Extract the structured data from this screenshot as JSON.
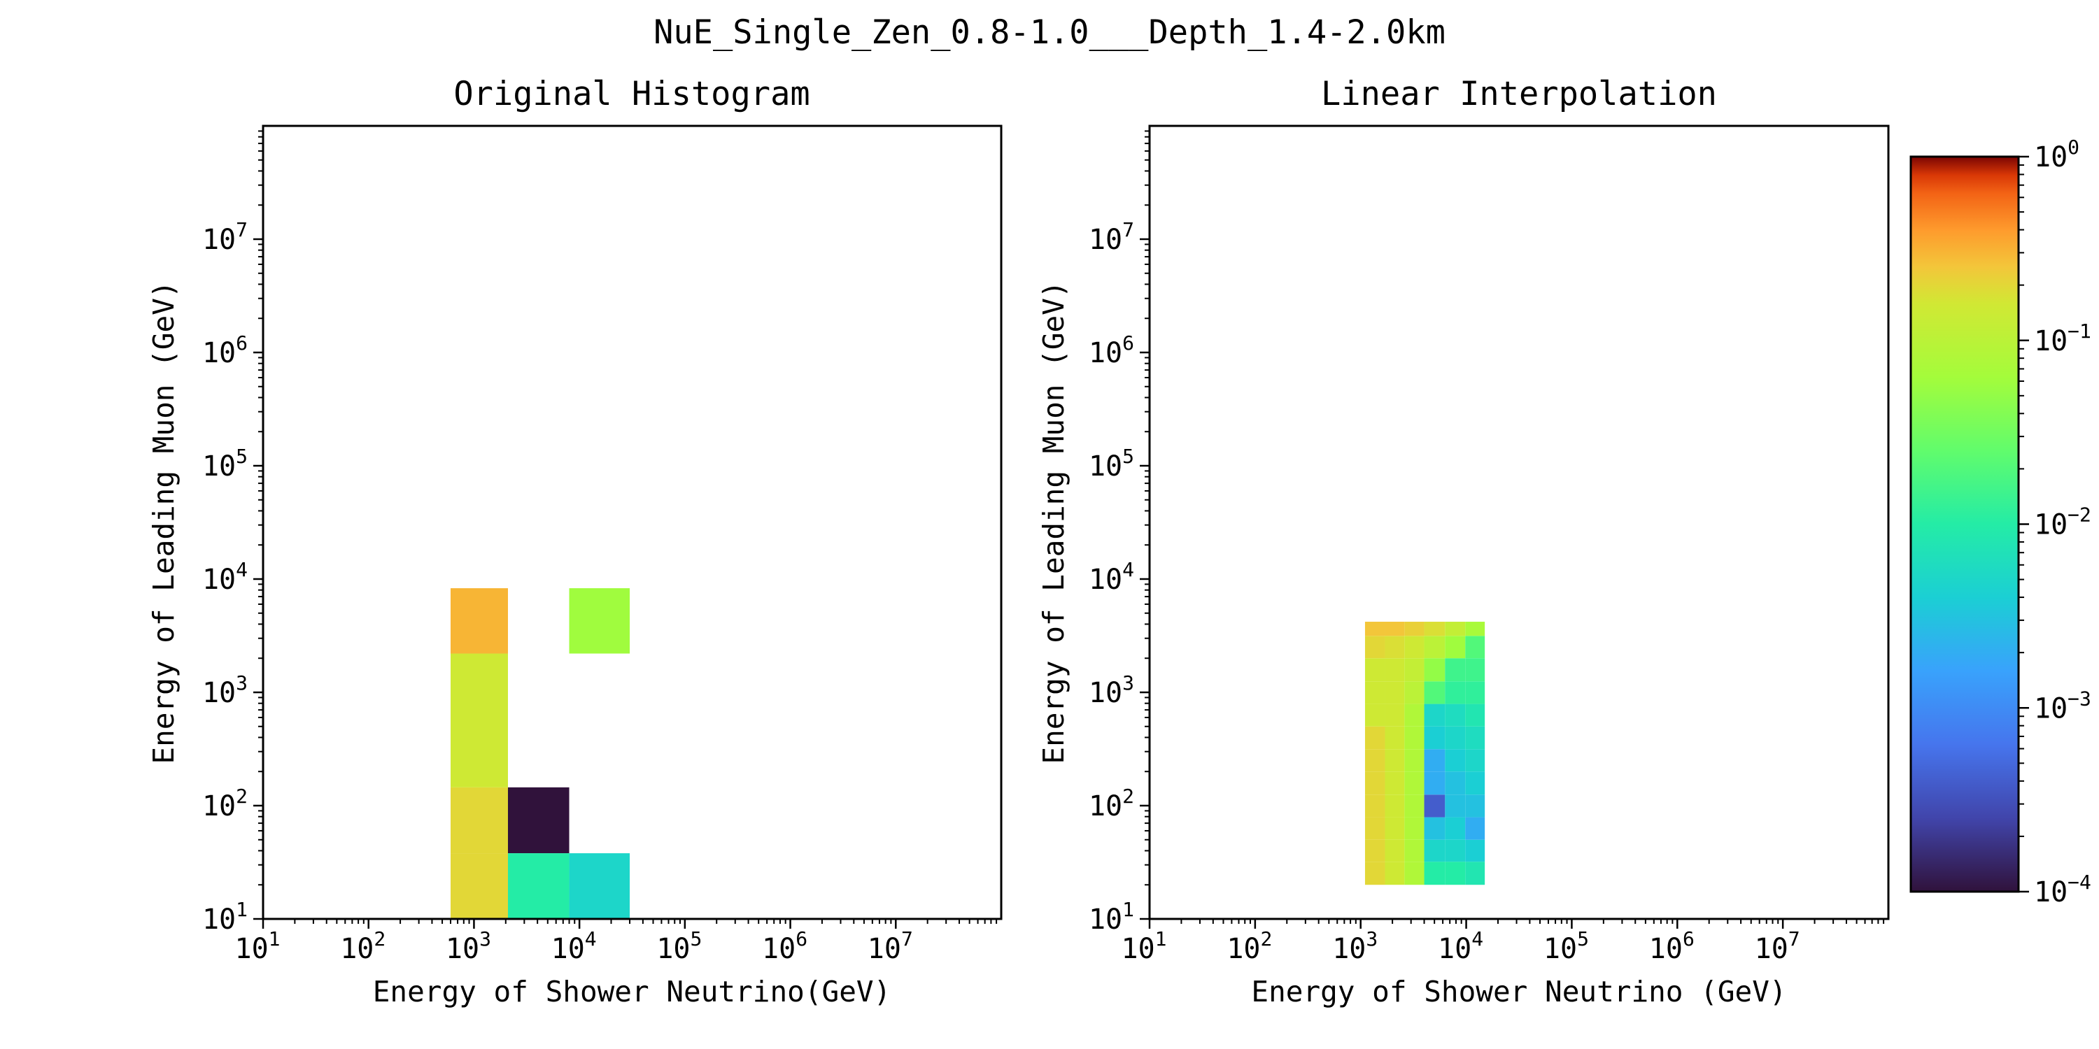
{
  "figure_title": "NuE_Single_Zen_0.8-1.0___Depth_1.4-2.0km",
  "chart_data": [
    {
      "type": "heatmap",
      "title": "Original Histogram",
      "xlabel": "Energy of Shower Neutrino(GeV)",
      "ylabel": "Energy of Leading Muon (GeV)",
      "x_scale": "log",
      "y_scale": "log",
      "xlim": [
        10,
        100000000
      ],
      "ylim": [
        10,
        100000000
      ],
      "x_ticks": [
        {
          "base": "10",
          "exp": "1"
        },
        {
          "base": "10",
          "exp": "2"
        },
        {
          "base": "10",
          "exp": "3"
        },
        {
          "base": "10",
          "exp": "4"
        },
        {
          "base": "10",
          "exp": "5"
        },
        {
          "base": "10",
          "exp": "6"
        },
        {
          "base": "10",
          "exp": "7"
        }
      ],
      "y_ticks": [
        {
          "base": "10",
          "exp": "1"
        },
        {
          "base": "10",
          "exp": "2"
        },
        {
          "base": "10",
          "exp": "3"
        },
        {
          "base": "10",
          "exp": "4"
        },
        {
          "base": "10",
          "exp": "5"
        },
        {
          "base": "10",
          "exp": "6"
        },
        {
          "base": "10",
          "exp": "7"
        }
      ],
      "cells": [
        {
          "x0": 600,
          "x1": 2100,
          "y0": 10,
          "y1": 38,
          "value": 0.2
        },
        {
          "x0": 600,
          "x1": 2100,
          "y0": 38,
          "y1": 145,
          "value": 0.2
        },
        {
          "x0": 600,
          "x1": 2100,
          "y0": 145,
          "y1": 2200,
          "value": 0.15
        },
        {
          "x0": 600,
          "x1": 2100,
          "y0": 2200,
          "y1": 8300,
          "value": 0.3
        },
        {
          "x0": 2100,
          "x1": 8000,
          "y0": 38,
          "y1": 145,
          "value": 0.0001
        },
        {
          "x0": 2100,
          "x1": 8000,
          "y0": 10,
          "y1": 38,
          "value": 0.01
        },
        {
          "x0": 8000,
          "x1": 30000,
          "y0": 10,
          "y1": 38,
          "value": 0.005
        },
        {
          "x0": 8000,
          "x1": 30000,
          "y0": 2200,
          "y1": 8300,
          "value": 0.06
        }
      ]
    },
    {
      "type": "heatmap",
      "title": "Linear Interpolation",
      "xlabel": "Energy of Shower Neutrino (GeV)",
      "ylabel": "Energy of Leading Muon (GeV)",
      "x_scale": "log",
      "y_scale": "log",
      "xlim": [
        10,
        100000000
      ],
      "ylim": [
        10,
        100000000
      ],
      "x_ticks": [
        {
          "base": "10",
          "exp": "1"
        },
        {
          "base": "10",
          "exp": "2"
        },
        {
          "base": "10",
          "exp": "3"
        },
        {
          "base": "10",
          "exp": "4"
        },
        {
          "base": "10",
          "exp": "5"
        },
        {
          "base": "10",
          "exp": "6"
        },
        {
          "base": "10",
          "exp": "7"
        }
      ],
      "y_ticks": [
        {
          "base": "10",
          "exp": "1"
        },
        {
          "base": "10",
          "exp": "2"
        },
        {
          "base": "10",
          "exp": "3"
        },
        {
          "base": "10",
          "exp": "4"
        },
        {
          "base": "10",
          "exp": "5"
        },
        {
          "base": "10",
          "exp": "6"
        },
        {
          "base": "10",
          "exp": "7"
        }
      ],
      "x_edges": [
        1100,
        1700,
        2600,
        4000,
        6300,
        9800,
        15000
      ],
      "y_edges": [
        20,
        32,
        50,
        79,
        125,
        200,
        315,
        500,
        790,
        1250,
        2000,
        3150,
        4200
      ],
      "grid_values": [
        [
          0.2,
          0.15,
          0.08,
          0.01,
          0.01,
          0.008
        ],
        [
          0.2,
          0.15,
          0.08,
          0.005,
          0.005,
          0.004
        ],
        [
          0.2,
          0.15,
          0.08,
          0.003,
          0.004,
          0.002
        ],
        [
          0.2,
          0.15,
          0.08,
          0.0004,
          0.003,
          0.003
        ],
        [
          0.2,
          0.15,
          0.08,
          0.002,
          0.003,
          0.004
        ],
        [
          0.2,
          0.15,
          0.08,
          0.002,
          0.004,
          0.005
        ],
        [
          0.2,
          0.15,
          0.08,
          0.004,
          0.005,
          0.006
        ],
        [
          0.15,
          0.15,
          0.08,
          0.005,
          0.006,
          0.008
        ],
        [
          0.15,
          0.15,
          0.1,
          0.02,
          0.012,
          0.012
        ],
        [
          0.15,
          0.15,
          0.12,
          0.05,
          0.015,
          0.015
        ],
        [
          0.2,
          0.18,
          0.15,
          0.1,
          0.06,
          0.02
        ],
        [
          0.25,
          0.25,
          0.22,
          0.18,
          0.12,
          0.07
        ]
      ]
    }
  ],
  "colorbar": {
    "scale": "log",
    "colormap": "turbo",
    "range": [
      0.0001,
      1
    ],
    "ticks": [
      {
        "base": "10",
        "exp": "0"
      },
      {
        "base": "10",
        "exp": "−1"
      },
      {
        "base": "10",
        "exp": "−2"
      },
      {
        "base": "10",
        "exp": "−3"
      },
      {
        "base": "10",
        "exp": "−4"
      }
    ]
  }
}
